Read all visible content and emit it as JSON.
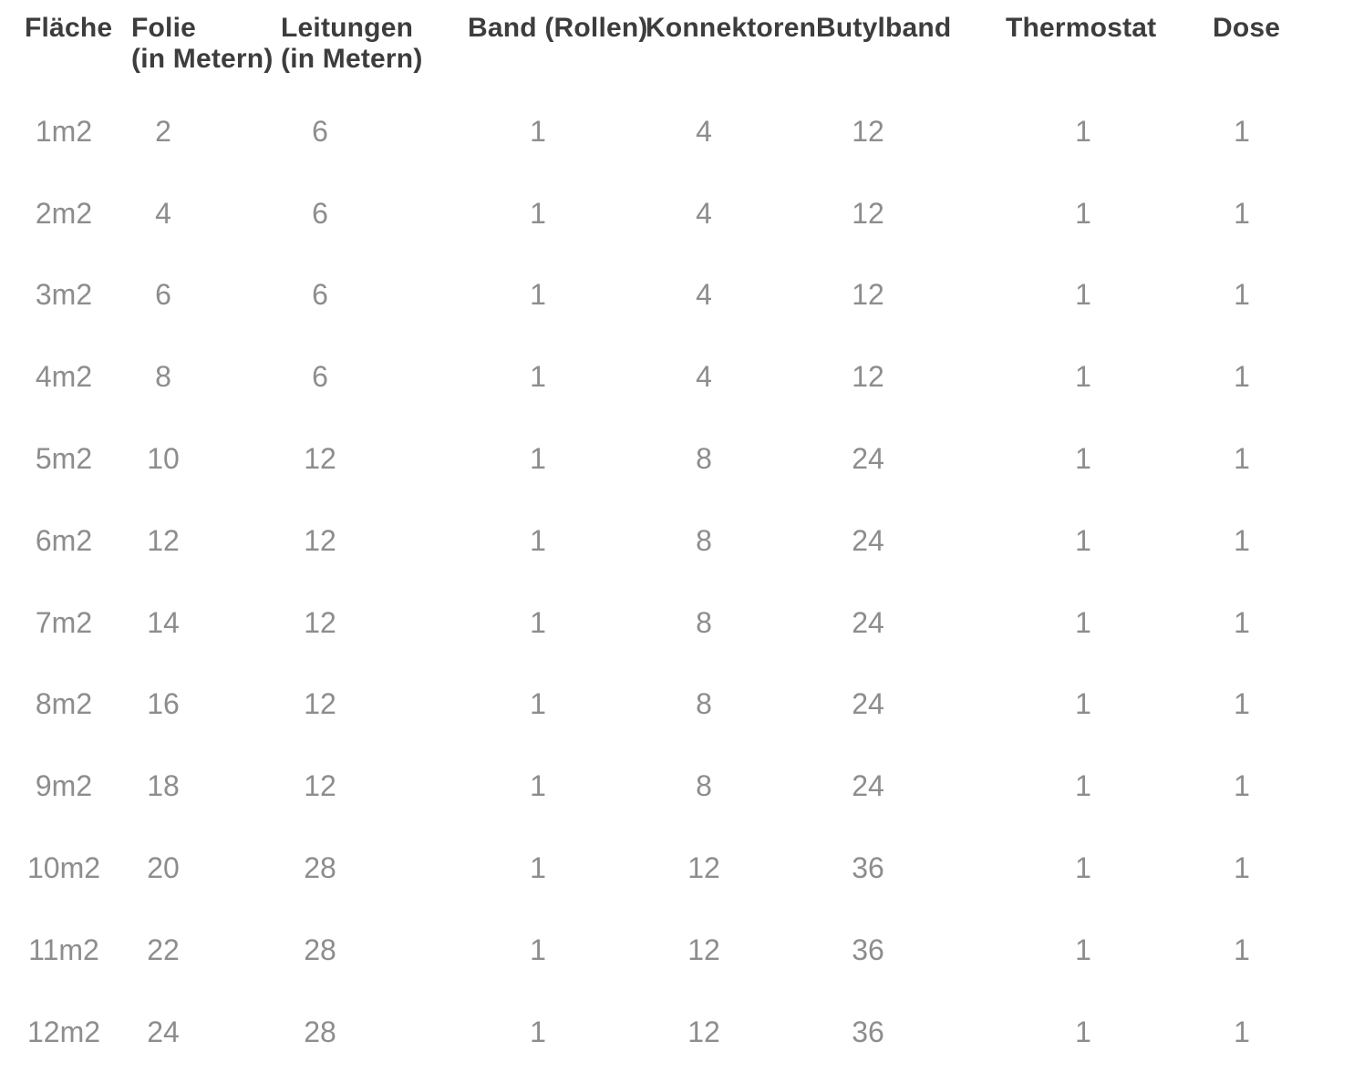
{
  "chart_data": {
    "type": "table",
    "title": "",
    "columns": [
      {
        "label": "Fläche",
        "sublabel": ""
      },
      {
        "label": "Folie",
        "sublabel": "(in Metern)"
      },
      {
        "label": "Leitungen",
        "sublabel": "(in Metern)"
      },
      {
        "label": "Band (Rollen)",
        "sublabel": ""
      },
      {
        "label": "Konnektoren",
        "sublabel": ""
      },
      {
        "label": "Butylband",
        "sublabel": ""
      },
      {
        "label": "Thermostat",
        "sublabel": ""
      },
      {
        "label": "Dose",
        "sublabel": ""
      }
    ],
    "rows": [
      {
        "cells": [
          "1m2",
          "2",
          "6",
          "1",
          "4",
          "12",
          "1",
          "1"
        ]
      },
      {
        "cells": [
          "2m2",
          "4",
          "6",
          "1",
          "4",
          "12",
          "1",
          "1"
        ]
      },
      {
        "cells": [
          "3m2",
          "6",
          "6",
          "1",
          "4",
          "12",
          "1",
          "1"
        ]
      },
      {
        "cells": [
          "4m2",
          "8",
          "6",
          "1",
          "4",
          "12",
          "1",
          "1"
        ]
      },
      {
        "cells": [
          "5m2",
          "10",
          "12",
          "1",
          "8",
          "24",
          "1",
          "1"
        ]
      },
      {
        "cells": [
          "6m2",
          "12",
          "12",
          "1",
          "8",
          "24",
          "1",
          "1"
        ]
      },
      {
        "cells": [
          "7m2",
          "14",
          "12",
          "1",
          "8",
          "24",
          "1",
          "1"
        ]
      },
      {
        "cells": [
          "8m2",
          "16",
          "12",
          "1",
          "8",
          "24",
          "1",
          "1"
        ]
      },
      {
        "cells": [
          "9m2",
          "18",
          "12",
          "1",
          "8",
          "24",
          "1",
          "1"
        ]
      },
      {
        "cells": [
          "10m2",
          "20",
          "28",
          "1",
          "12",
          "36",
          "1",
          "1"
        ]
      },
      {
        "cells": [
          "11m2",
          "22",
          "28",
          "1",
          "12",
          "36",
          "1",
          "1"
        ]
      },
      {
        "cells": [
          "12m2",
          "24",
          "28",
          "1",
          "12",
          "36",
          "1",
          "1"
        ]
      }
    ]
  },
  "colors": {
    "header_text": "#3d3d3d",
    "cell_text": "#8d8d8d",
    "background": "#ffffff"
  }
}
